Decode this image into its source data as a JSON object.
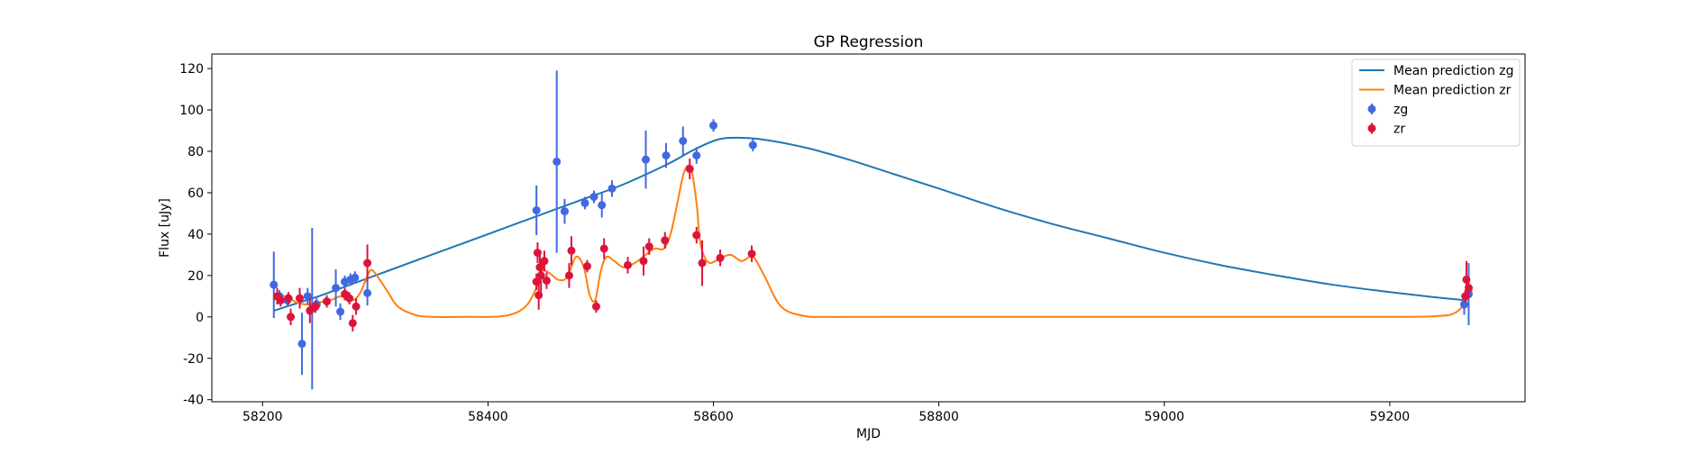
{
  "chart_data": {
    "type": "scatter",
    "title": "GP Regression",
    "xlabel": "MJD",
    "ylabel": "Flux [uJy]",
    "xlim": [
      58155,
      59320
    ],
    "ylim": [
      -41,
      127
    ],
    "xticks": [
      58200,
      58400,
      58600,
      58800,
      59000,
      59200
    ],
    "yticks": [
      -40,
      -20,
      0,
      20,
      40,
      60,
      80,
      100,
      120
    ],
    "grid": false,
    "legend_position": "upper right",
    "series": [
      {
        "name": "Mean prediction zg",
        "kind": "line",
        "color": "#1f77b4",
        "x": [
          58210,
          58230,
          58250,
          58270,
          58290,
          58310,
          58350,
          58400,
          58440,
          58480,
          58520,
          58560,
          58580,
          58600,
          58615,
          58640,
          58680,
          58720,
          58760,
          58800,
          58850,
          58900,
          58950,
          59000,
          59050,
          59100,
          59150,
          59200,
          59240,
          59268
        ],
        "y": [
          3,
          6.5,
          10,
          14,
          18,
          22,
          30,
          40,
          48,
          56,
          64,
          74,
          80,
          85,
          86.5,
          86,
          82,
          76,
          69,
          62,
          53,
          45,
          38,
          31,
          25,
          20,
          15.5,
          12,
          9.5,
          8
        ]
      },
      {
        "name": "Mean prediction zr",
        "kind": "line",
        "color": "#ff7f0e",
        "x": [
          58210,
          58220,
          58230,
          58240,
          58250,
          58260,
          58270,
          58280,
          58287,
          58295,
          58300,
          58310,
          58320,
          58335,
          58350,
          58380,
          58410,
          58425,
          58435,
          58442,
          58448,
          58455,
          58462,
          58470,
          58478,
          58485,
          58490,
          58495,
          58500,
          58505,
          58512,
          58520,
          58530,
          58540,
          58548,
          58556,
          58562,
          58568,
          58574,
          58580,
          58585,
          58588,
          58592,
          58597,
          58605,
          58615,
          58625,
          58635,
          58645,
          58660,
          58680,
          58700,
          58750,
          59000,
          59200,
          59245,
          59258,
          59266,
          59270,
          59273
        ],
        "y": [
          8,
          10,
          7,
          6,
          7,
          8,
          10,
          8,
          12,
          22,
          21,
          13,
          5,
          1,
          0,
          0,
          0.2,
          2,
          6,
          13,
          22,
          21,
          18,
          19,
          29,
          24,
          11,
          8,
          22,
          29,
          27,
          24,
          26,
          30,
          33,
          33,
          40,
          55,
          70,
          72,
          55,
          37,
          29,
          26,
          28,
          30,
          27,
          29,
          20,
          5,
          0.5,
          0,
          0,
          0,
          0,
          0.5,
          2,
          6,
          10,
          13
        ]
      },
      {
        "name": "zg",
        "kind": "errorbar",
        "color": "#4169e1",
        "x": [
          58210,
          58215,
          58222,
          58235,
          58240,
          58244,
          58248,
          58265,
          58269,
          58273,
          58278,
          58282,
          58293,
          58443,
          58461,
          58468,
          58486,
          58494,
          58501,
          58510,
          58540,
          58558,
          58573,
          58585,
          58600,
          58635,
          59266,
          59270
        ],
        "y": [
          15.5,
          10,
          8,
          -13,
          10,
          4,
          6,
          14,
          2.5,
          17,
          18,
          19,
          11.5,
          51.5,
          75,
          51,
          55,
          58,
          54,
          62,
          76,
          78,
          85,
          78,
          92.5,
          83,
          6,
          11
        ],
        "err": [
          16,
          3,
          3,
          15,
          4,
          39,
          3,
          9,
          4,
          3,
          3,
          3,
          6,
          12,
          44,
          6,
          3,
          3,
          6,
          4,
          14,
          6,
          7,
          4,
          3,
          3,
          5,
          15
        ]
      },
      {
        "name": "zr",
        "kind": "errorbar",
        "color": "#dc143c",
        "x": [
          58213,
          58216,
          58223,
          58225,
          58233,
          58242,
          58247,
          58257,
          58273,
          58277,
          58280,
          58283,
          58293,
          58443,
          58444,
          58445,
          58446,
          58447,
          58450,
          58452,
          58472,
          58474,
          58488,
          58496,
          58503,
          58524,
          58538,
          58543,
          58557,
          58579,
          58585,
          58590,
          58606,
          58634,
          59267,
          59268,
          59270
        ],
        "y": [
          10,
          8,
          9,
          0,
          9,
          3,
          5,
          7.5,
          11,
          9,
          -3,
          5,
          26,
          17,
          31,
          10.5,
          24,
          20,
          27,
          17.5,
          20,
          32,
          24.5,
          5,
          33,
          25,
          27,
          34,
          37,
          71.5,
          39.5,
          26,
          28.5,
          30.5,
          10,
          18,
          14
        ],
        "err": [
          4,
          3,
          3,
          4,
          5,
          6,
          3,
          3,
          3,
          3,
          4,
          4,
          9,
          4,
          5,
          7,
          6,
          8,
          5,
          4,
          6,
          7,
          3,
          3,
          5,
          4,
          7,
          4,
          4,
          5,
          4,
          11,
          4,
          4,
          3,
          9,
          5
        ]
      }
    ]
  }
}
